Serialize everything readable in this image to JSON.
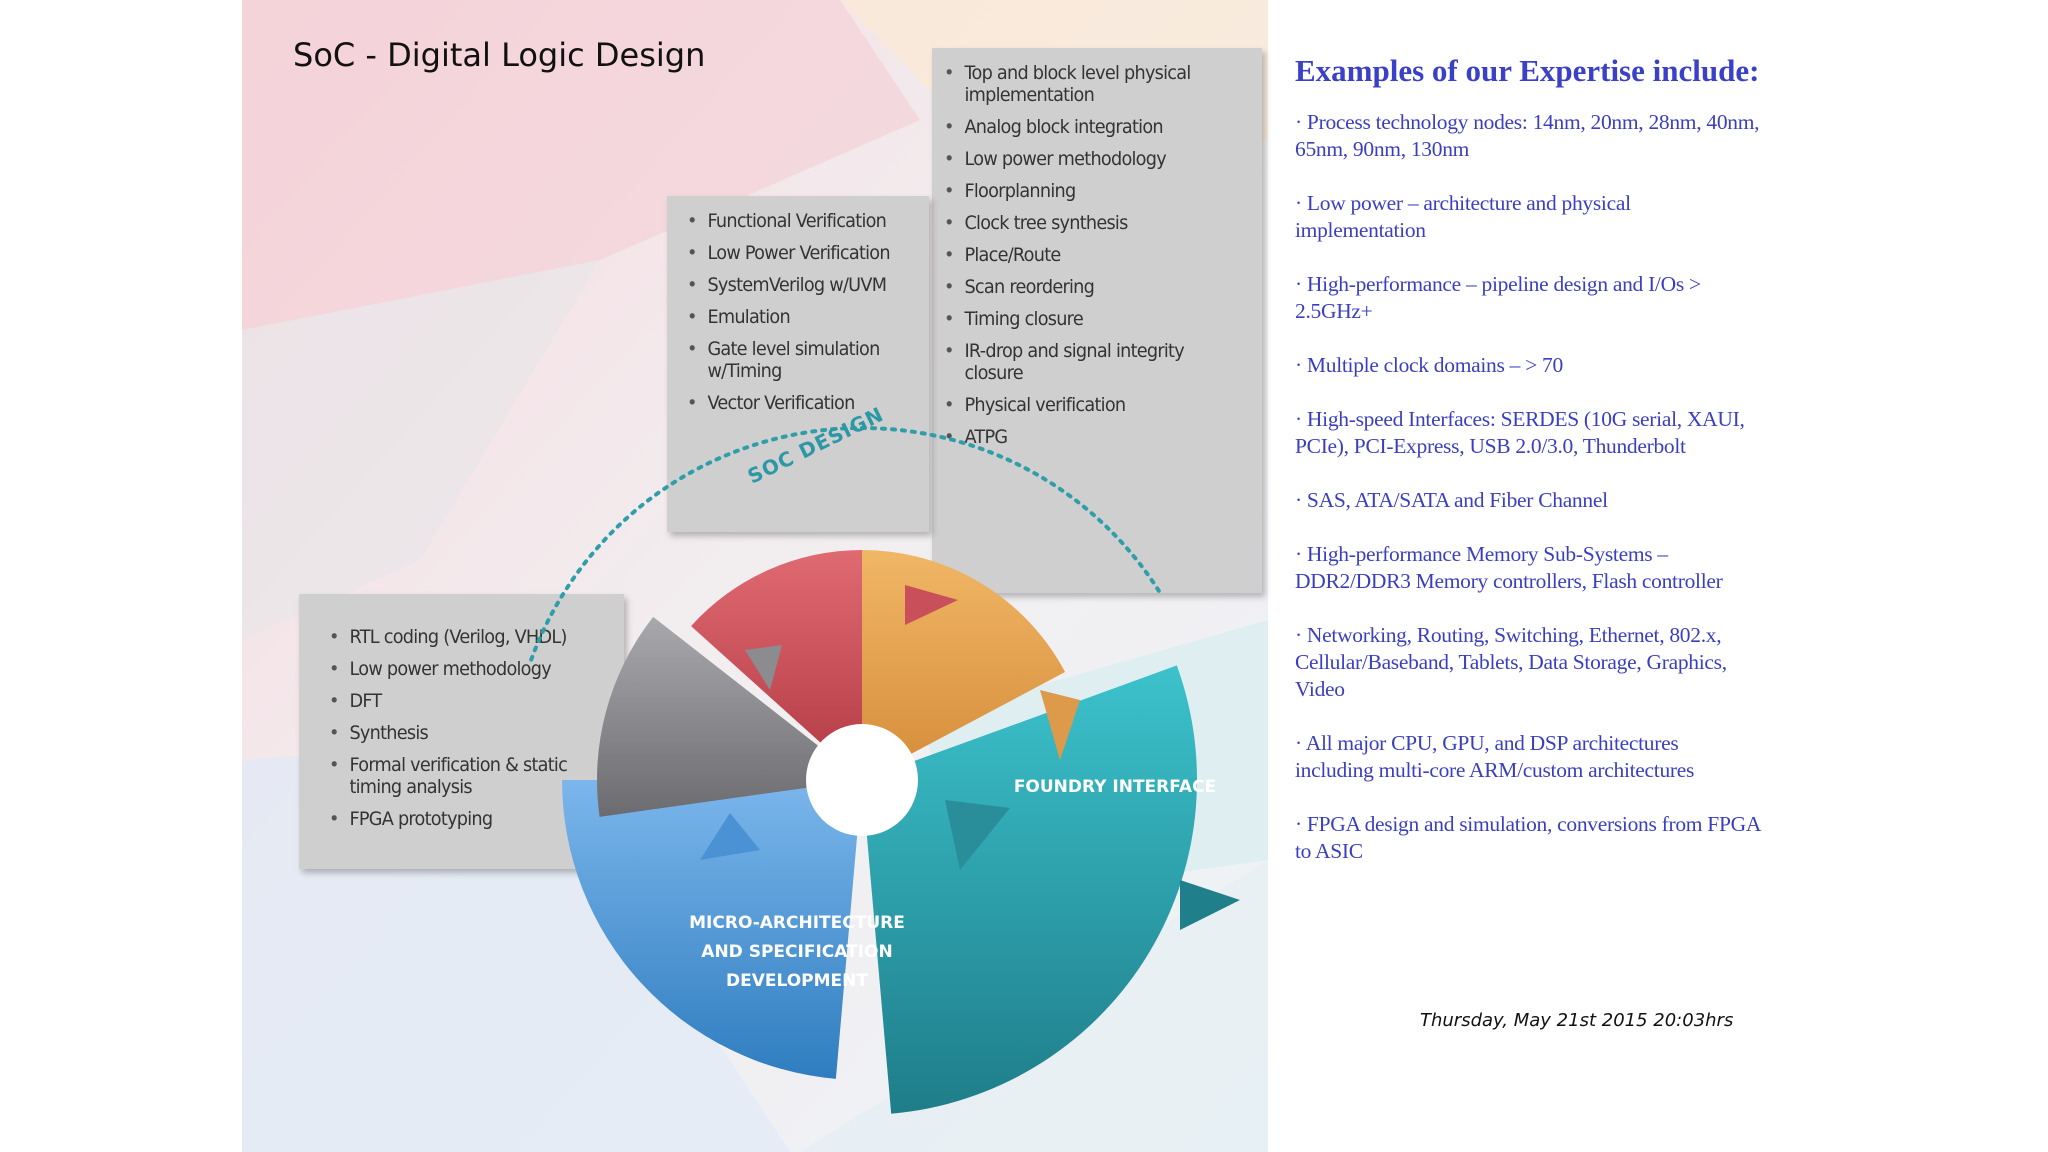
{
  "slide": {
    "title": "SoC - Digital Logic Design",
    "date": "Thursday, May 21st 2015 20:03hrs"
  },
  "diagram": {
    "arc_label": "SOC DESIGN",
    "segments": [
      {
        "name": "foundry",
        "label": [
          "FOUNDRY INTERFACE"
        ],
        "color": "#2a9aa8"
      },
      {
        "name": "micro",
        "label": [
          "MICRO-ARCHITECTURE",
          "AND SPECIFICATION",
          "DEVELOPMENT"
        ],
        "color": "#3f8fd0"
      },
      {
        "name": "rtl",
        "label": [],
        "color": "#8a8a8e"
      },
      {
        "name": "verification",
        "label": [],
        "color": "#d24f59"
      },
      {
        "name": "physical",
        "label": [],
        "color": "#e9a653"
      }
    ],
    "physical_items": [
      "Top and block level physical implementation",
      "Analog block integration",
      "Low power methodology",
      "Floorplanning",
      "Clock tree synthesis",
      "Place/Route",
      "Scan reordering",
      "Timing closure",
      "IR-drop and signal integrity closure",
      "Physical verification",
      "ATPG"
    ],
    "verification_items": [
      "Functional Verification",
      "Low Power Verification",
      "SystemVerilog w/UVM",
      "Emulation",
      "Gate level simulation w/Timing",
      "Vector Verification"
    ],
    "rtl_items": [
      "RTL coding (Verilog, VHDL)",
      "Low power methodology",
      "DFT",
      "Synthesis",
      "Formal verification & static timing analysis",
      "FPGA prototyping"
    ]
  },
  "expertise": {
    "title": "Examples of our Expertise include:",
    "items": [
      "· Process technology nodes: 14nm, 20nm, 28nm, 40nm, 65nm, 90nm, 130nm",
      "· Low power – architecture and physical implementation",
      "· High-performance – pipeline design and I/Os > 2.5GHz+",
      "· Multiple clock domains – > 70",
      "· High-speed Interfaces: SERDES (10G serial, XAUI, PCIe), PCI-Express, USB 2.0/3.0, Thunderbolt",
      "· SAS, ATA/SATA and Fiber Channel",
      "· High-performance Memory Sub-Systems – DDR2/DDR3 Memory controllers, Flash controller",
      "· Networking, Routing, Switching, Ethernet, 802.x, Cellular/Baseband, Tablets, Data Storage, Graphics, Video",
      "· All major CPU, GPU, and DSP architectures including multi-core ARM/custom architectures",
      "· FPGA design and simulation, conversions from FPGA to ASIC"
    ]
  }
}
